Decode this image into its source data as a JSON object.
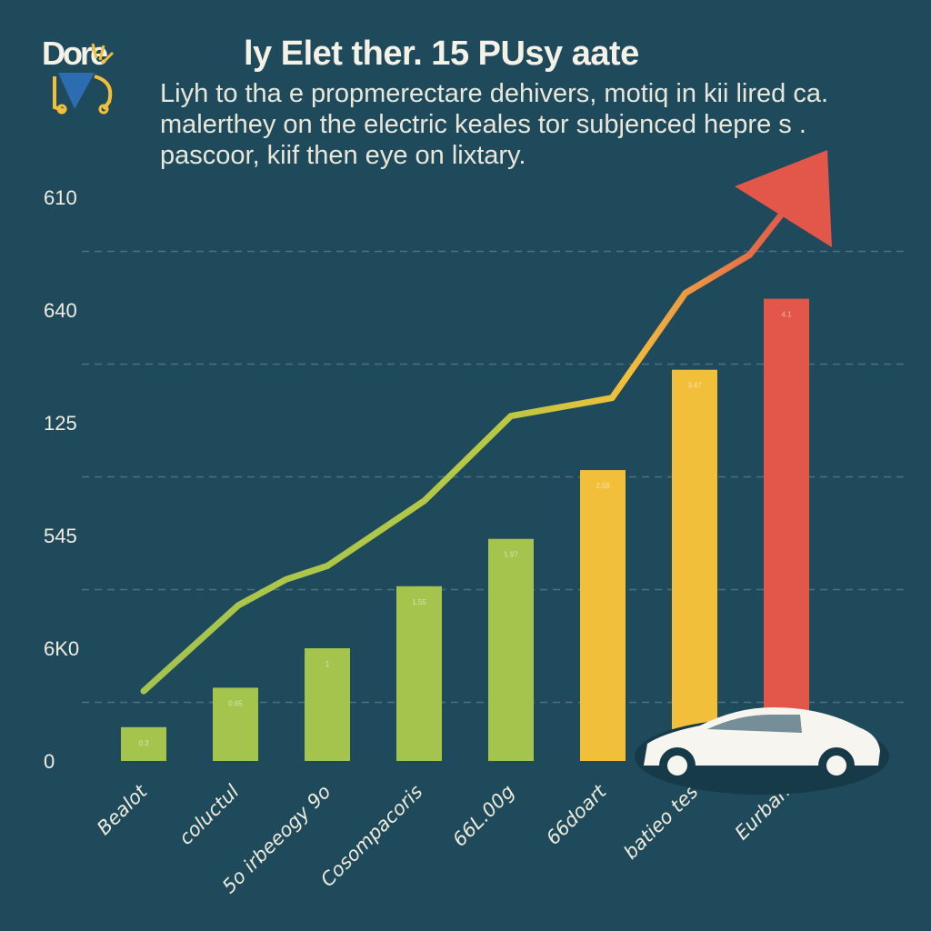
{
  "header": {
    "logo_text": "Dore",
    "title": "ly Elet ther. 15 PUsy aate",
    "subtitle_lines": [
      "Liyh to tha e propmerectare dehivers, motiq in kii lired ca.",
      "malerthey on the electric keales tor subjenced hepre s .",
      "pascoor, kiif then eye on lixtary."
    ]
  },
  "colors": {
    "background": "#1f4a5c",
    "green": "#a4c44e",
    "yellow": "#f2bf3a",
    "red": "#e2574a",
    "line_start": "#a4c44e",
    "line_end": "#e2574a",
    "gridline": "#4d7080"
  },
  "chart_data": {
    "type": "bar",
    "title": "ly Elet ther. 15 PUsy aate",
    "xlabel": "",
    "ylabel": "",
    "y_tick_labels": [
      "0",
      "6K0",
      "545",
      "125",
      "640",
      "610"
    ],
    "y_scale_note": "values given in tick-level units (0 = bottom tick, 5 = top tick)",
    "ylim": [
      0,
      5
    ],
    "grid": true,
    "categories": [
      "Bealot",
      "coluctul",
      "5o irbeeogy 9o",
      "Cosompacoris",
      "66L.00g",
      "66doart",
      "batieo tes",
      "Eurban"
    ],
    "values": [
      0.3,
      0.65,
      1.0,
      1.55,
      1.97,
      2.58,
      3.47,
      4.1
    ],
    "bar_colors": [
      "green",
      "green",
      "green",
      "green",
      "green",
      "yellow",
      "yellow",
      "red"
    ],
    "trend_line": {
      "x": [
        0,
        1.03,
        1.55,
        2.0,
        3.06,
        4.0,
        5.1,
        5.9,
        6.6
      ],
      "y": [
        0.62,
        1.38,
        1.61,
        1.73,
        2.31,
        3.06,
        3.22,
        4.15,
        4.49
      ],
      "arrow": true
    }
  },
  "decorations": {
    "car_icon": "car-icon",
    "logo_icon": "lightbulb-icon"
  }
}
